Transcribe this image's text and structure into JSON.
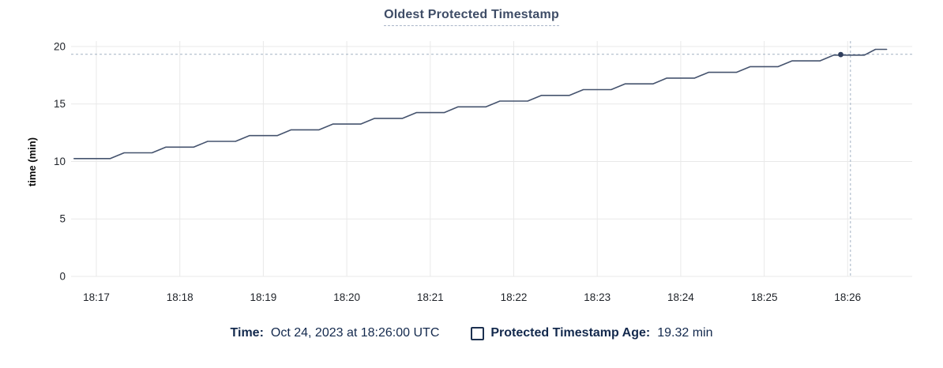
{
  "title": "Oldest Protected Timestamp",
  "legend": {
    "time_label": "Time:",
    "time_value": "Oct 24, 2023 at 18:26:00 UTC",
    "series_label": "Protected Timestamp Age:",
    "series_value": "19.32 min"
  },
  "colors": {
    "background": "#ffffff",
    "title": "#3e4c66",
    "title_underline": "#a9b5c8",
    "grid": "#e9e9e9",
    "axis_text": "#1e2228",
    "axis_label_text": "#0a0a0a",
    "series_line": "#45536e",
    "marker": "#2e3d5c",
    "crosshair": "#a2b2c3",
    "legend_text": "#13294d",
    "checkbox_border": "#1d3150"
  },
  "chart_data": {
    "type": "line",
    "title": "Oldest Protected Timestamp",
    "xlabel": "",
    "ylabel": "time (min)",
    "ylim": [
      0,
      20
    ],
    "yticks": [
      0,
      5,
      10,
      15,
      20
    ],
    "ytick_labels": [
      "0",
      "5",
      "10",
      "15",
      "20"
    ],
    "x_ticks": [
      "18:17",
      "18:18",
      "18:19",
      "18:20",
      "18:21",
      "18:22",
      "18:23",
      "18:24",
      "18:25",
      "18:26"
    ],
    "x_base": "18:17:00",
    "grid": true,
    "legend_position": "bottom",
    "series": [
      {
        "name": "Protected Timestamp Age",
        "unit": "min",
        "t_seconds_from_18_17": [
          -16,
          10,
          20,
          40,
          50,
          70,
          80,
          100,
          110,
          130,
          140,
          160,
          170,
          190,
          200,
          220,
          230,
          250,
          260,
          280,
          290,
          310,
          320,
          340,
          350,
          370,
          380,
          400,
          410,
          430,
          440,
          460,
          470,
          490,
          500,
          520,
          530,
          552,
          560,
          568
        ],
        "values_min": [
          10.25,
          10.25,
          10.75,
          10.75,
          11.25,
          11.25,
          11.75,
          11.75,
          12.25,
          12.25,
          12.75,
          12.75,
          13.25,
          13.25,
          13.75,
          13.75,
          14.25,
          14.25,
          14.75,
          14.75,
          15.25,
          15.25,
          15.75,
          15.75,
          16.25,
          16.25,
          16.75,
          16.75,
          17.25,
          17.25,
          17.75,
          17.75,
          18.25,
          18.25,
          18.75,
          18.75,
          19.25,
          19.25,
          19.75,
          19.75
        ]
      }
    ],
    "crosshair": {
      "hover_time_label": "Oct 24, 2023 at 18:26:00 UTC",
      "vline_t_seconds": 542,
      "hline_value_min": 19.32,
      "dot_t_seconds": 535,
      "dot_value_min": 19.3
    }
  }
}
